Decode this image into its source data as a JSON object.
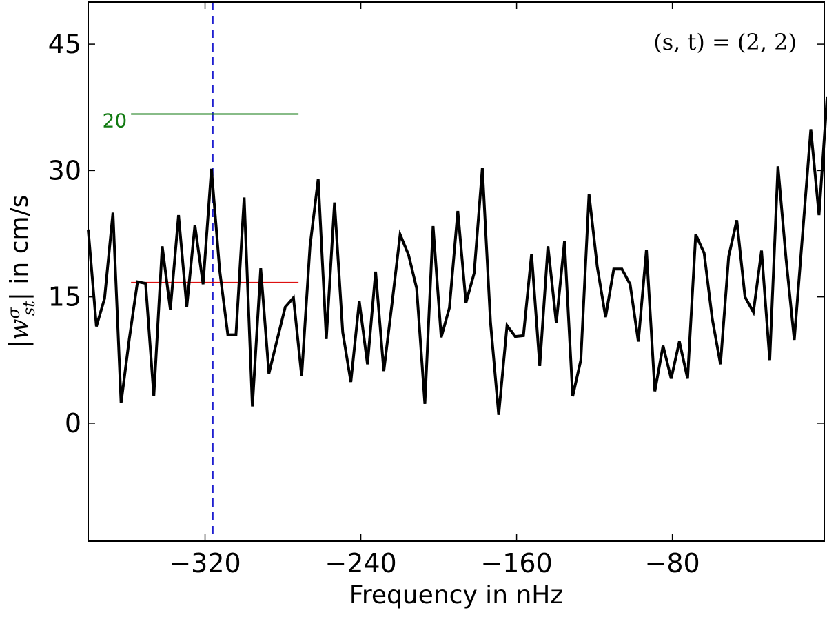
{
  "chart_data": {
    "type": "line",
    "xlabel": "Frequency in nHz",
    "ylabel_prefix": "|w",
    "ylabel_sup": "σ",
    "ylabel_sub": "st",
    "ylabel_suffix": "| in cm/s",
    "annotation": "(s, t) = (2, 2)",
    "xlim": [
      -380,
      -2
    ],
    "ylim": [
      -14,
      50
    ],
    "xticks": [
      -320,
      -240,
      -160,
      -80
    ],
    "xtick_labels": [
      "−320",
      "−240",
      "−160",
      "−80"
    ],
    "yticks": [
      0,
      15,
      30,
      45
    ],
    "ytick_labels": [
      "0",
      "15",
      "30",
      "45"
    ],
    "grid": false,
    "series": [
      {
        "color": "#000000",
        "x": [
          -380,
          -375.8,
          -371.6,
          -367.3,
          -363.1,
          -358.9,
          -354.7,
          -350.5,
          -346.3,
          -342.0,
          -337.8,
          -333.6,
          -329.4,
          -325.2,
          -321.0,
          -316.7,
          -312.5,
          -308.3,
          -304.1,
          -299.9,
          -295.7,
          -291.4,
          -287.2,
          -283.0,
          -278.8,
          -274.6,
          -270.4,
          -266.1,
          -261.9,
          -257.7,
          -253.5,
          -249.3,
          -245.1,
          -240.8,
          -236.6,
          -232.4,
          -228.2,
          -224.0,
          -219.8,
          -215.5,
          -211.3,
          -207.1,
          -202.9,
          -198.7,
          -194.5,
          -190.2,
          -186.0,
          -181.8,
          -177.6,
          -173.4,
          -169.2,
          -164.9,
          -160.7,
          -156.5,
          -152.3,
          -148.1,
          -143.9,
          -139.6,
          -135.4,
          -131.2,
          -127.0,
          -122.8,
          -118.6,
          -114.3,
          -110.1,
          -105.9,
          -101.7,
          -97.5,
          -93.3,
          -89.0,
          -84.8,
          -80.6,
          -76.4,
          -72.2,
          -68.0,
          -63.7,
          -59.5,
          -55.3,
          -51.1,
          -46.9,
          -42.7,
          -38.4,
          -34.2,
          -30.0,
          -25.8,
          -21.6,
          -17.4,
          -13.1,
          -8.9,
          -4.7,
          -0.5
        ],
        "y": [
          23,
          11.5,
          14.8,
          25,
          2.4,
          10,
          16.8,
          16.6,
          3.2,
          21,
          13.5,
          24.7,
          13.8,
          23.5,
          16.5,
          30.2,
          18.2,
          10.5,
          10.5,
          26.8,
          2,
          18.4,
          5.9,
          9.9,
          13.8,
          14.9,
          5.6,
          21,
          29,
          10,
          26.2,
          10.8,
          4.9,
          14.5,
          7,
          18,
          6.2,
          14.2,
          22.4,
          20,
          16,
          2.3,
          23.4,
          10.2,
          13.7,
          25.2,
          14.3,
          17.8,
          30.3,
          12,
          1,
          11.6,
          10.3,
          10.4,
          20.1,
          6.8,
          21,
          11.9,
          21.6,
          3.2,
          7.5,
          27.2,
          18.6,
          12.6,
          18.3,
          18.3,
          16.5,
          9.7,
          20.6,
          3.8,
          9.2,
          5.3,
          9.7,
          5.3,
          22.4,
          20.2,
          12.4,
          7,
          19.8,
          24.1,
          15,
          13.2,
          20.5,
          7.5,
          30.5,
          19.5,
          9.9,
          22.5,
          34.9,
          24.7,
          38.8
        ]
      }
    ],
    "reference_lines": [
      {
        "kind": "vline",
        "x": -316,
        "color": "#1f1fd0",
        "style": "dashed"
      },
      {
        "kind": "hline",
        "y": 16.7,
        "x_from": -358,
        "x_to": -272,
        "color": "#dd1111"
      },
      {
        "kind": "hline",
        "y": 36.7,
        "x_from": -358,
        "x_to": -272,
        "color": "#117a11",
        "label": "20"
      }
    ]
  }
}
